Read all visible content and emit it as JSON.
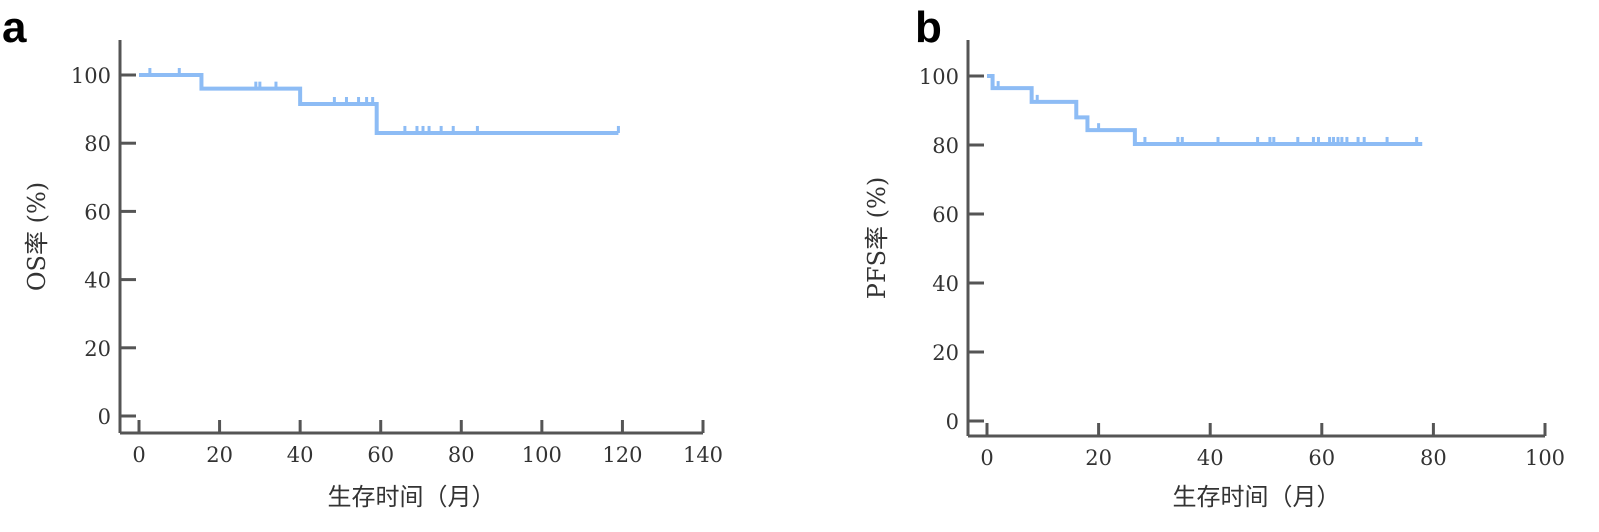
{
  "chart_data": [
    {
      "type": "line",
      "panel": "a",
      "title": "",
      "xlabel": "生存时间（月）",
      "ylabel": "OS率 (%)",
      "xlim": [
        0,
        140
      ],
      "ylim": [
        0,
        100
      ],
      "xticks": [
        0,
        20,
        40,
        60,
        80,
        100,
        120,
        140
      ],
      "yticks": [
        0,
        20,
        40,
        60,
        80,
        100
      ],
      "color": "#8dbcf5",
      "steps": [
        [
          0,
          100
        ],
        [
          15.5,
          96
        ],
        [
          40,
          91.5
        ],
        [
          59,
          83
        ],
        [
          119,
          83
        ]
      ],
      "censored": [
        2.7,
        10,
        29,
        30,
        34,
        40,
        48.5,
        51.5,
        54.5,
        56.5,
        58,
        66,
        69,
        70.5,
        72,
        75,
        78,
        84,
        119
      ]
    },
    {
      "type": "line",
      "panel": "b",
      "title": "",
      "xlabel": "生存时间（月）",
      "ylabel": "PFS率 (%)",
      "xlim": [
        0,
        100
      ],
      "ylim": [
        0,
        100
      ],
      "xticks": [
        0,
        20,
        40,
        60,
        80,
        100
      ],
      "yticks": [
        0,
        20,
        40,
        60,
        80,
        100
      ],
      "color": "#8dbcf5",
      "steps": [
        [
          0,
          100
        ],
        [
          1,
          96.5
        ],
        [
          8,
          92.5
        ],
        [
          16,
          88
        ],
        [
          18,
          84.3
        ],
        [
          26.5,
          80.3
        ],
        [
          78,
          80.3
        ]
      ],
      "censored": [
        2,
        9,
        20,
        28.3,
        34.2,
        35,
        41.4,
        48.5,
        50.7,
        51.4,
        55.7,
        58.5,
        59.4,
        61.4,
        62.1,
        62.9,
        63.6,
        64.5,
        66.5,
        67.6,
        71.7,
        77
      ]
    }
  ]
}
